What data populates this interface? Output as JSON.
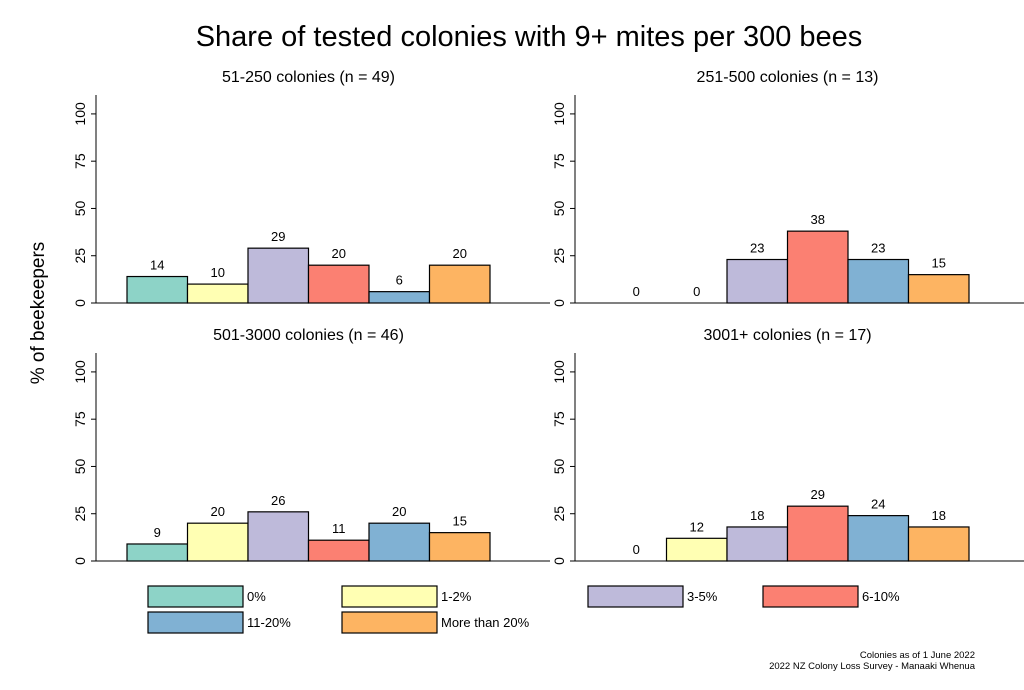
{
  "chart_data": {
    "type": "bar",
    "title": "Share of tested colonies with 9+ mites per 300 bees",
    "ylabel": "% of beekeepers",
    "ylim": [
      0,
      110
    ],
    "yticks": [
      0,
      25,
      50,
      75,
      100
    ],
    "categories": [
      "0%",
      "1-2%",
      "3-5%",
      "6-10%",
      "11-20%",
      "More than 20%"
    ],
    "colors": [
      "#8dd3c7",
      "#ffffb3",
      "#bebada",
      "#fb8072",
      "#80b1d3",
      "#fdb462"
    ],
    "panels": [
      {
        "title": "51-250 colonies (n = 49)",
        "values": [
          14,
          10,
          29,
          20,
          6,
          20
        ]
      },
      {
        "title": "251-500 colonies (n = 13)",
        "values": [
          0,
          0,
          23,
          38,
          23,
          15
        ]
      },
      {
        "title": "501-3000 colonies (n = 46)",
        "values": [
          9,
          20,
          26,
          11,
          20,
          15
        ]
      },
      {
        "title": "3001+ colonies (n = 17)",
        "values": [
          0,
          12,
          18,
          29,
          24,
          18
        ]
      }
    ],
    "grid": false,
    "legend": "bottom"
  },
  "notes": {
    "line1": "Colonies as of 1 June 2022",
    "line2": "2022 NZ Colony Loss Survey - Manaaki Whenua"
  }
}
